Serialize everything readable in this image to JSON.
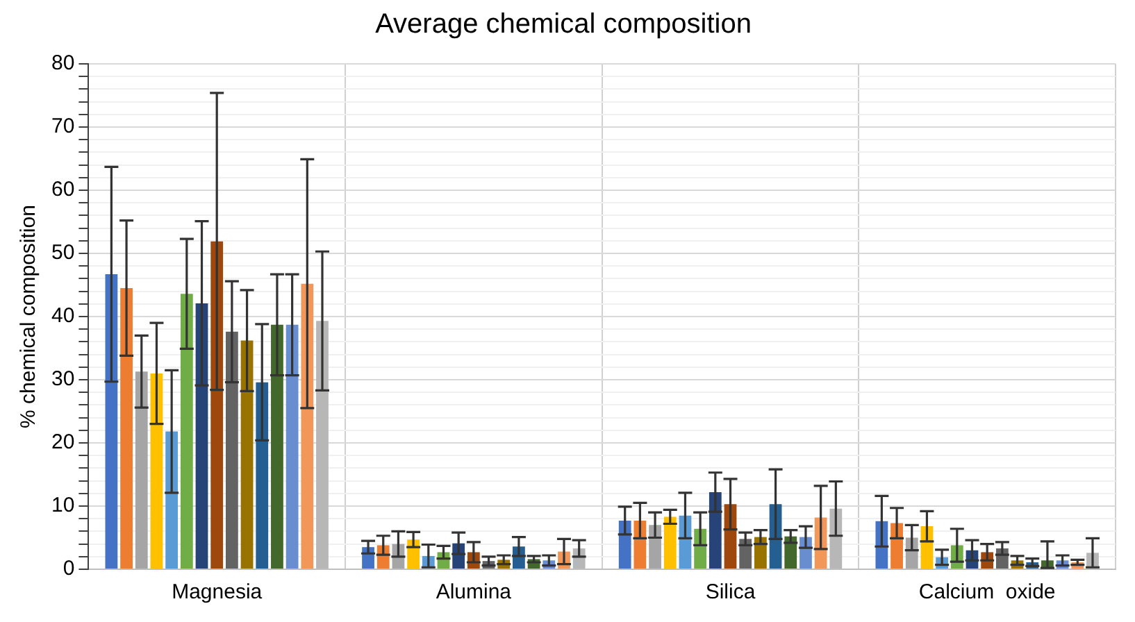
{
  "chart_data": {
    "type": "bar",
    "title": "Average chemical composition",
    "ylabel": "% chemical composition",
    "categories": [
      "Magnesia",
      "Alumina",
      "Silica",
      "Calcium  oxide"
    ],
    "ylim": [
      0,
      80
    ],
    "yticks": [
      0,
      {
        "value": 2,
        "label": null
      },
      {
        "value": 4,
        "label": null
      },
      {
        "value": 6,
        "label": null
      },
      {
        "value": 8,
        "label": null
      },
      10,
      {
        "value": 12,
        "label": null
      },
      {
        "value": 14,
        "label": null
      },
      {
        "value": 16,
        "label": null
      },
      {
        "value": 18,
        "label": null
      },
      20,
      {
        "value": 22,
        "label": null
      },
      {
        "value": 24,
        "label": null
      },
      {
        "value": 26,
        "label": null
      },
      {
        "value": 28,
        "label": null
      },
      30,
      {
        "value": 32,
        "label": null
      },
      {
        "value": 34,
        "label": null
      },
      {
        "value": 36,
        "label": null
      },
      {
        "value": 38,
        "label": null
      },
      40,
      {
        "value": 42,
        "label": null
      },
      {
        "value": 44,
        "label": null
      },
      {
        "value": 46,
        "label": null
      },
      {
        "value": 48,
        "label": null
      },
      50,
      {
        "value": 52,
        "label": null
      },
      {
        "value": 54,
        "label": null
      },
      {
        "value": 56,
        "label": null
      },
      {
        "value": 58,
        "label": null
      },
      60,
      {
        "value": 62,
        "label": null
      },
      {
        "value": 64,
        "label": null
      },
      {
        "value": 66,
        "label": null
      },
      {
        "value": 68,
        "label": null
      },
      70,
      {
        "value": 72,
        "label": null
      },
      {
        "value": 74,
        "label": null
      },
      {
        "value": 76,
        "label": null
      },
      {
        "value": 78,
        "label": null
      },
      80
    ],
    "grid": true,
    "legend": false,
    "series": [
      {
        "color": "#4472c4",
        "values": [
          46.7,
          3.5,
          7.7,
          7.6
        ],
        "errors": [
          17,
          1,
          2.2,
          4
        ]
      },
      {
        "color": "#ed7d31",
        "values": [
          44.5,
          3.8,
          7.7,
          7.3
        ],
        "errors": [
          10.7,
          1.5,
          2.8,
          2.4
        ]
      },
      {
        "color": "#a5a5a5",
        "values": [
          31.3,
          4,
          7,
          5
        ],
        "errors": [
          5.7,
          2,
          2,
          2
        ]
      },
      {
        "color": "#ffc000",
        "values": [
          31,
          4.7,
          8.3,
          6.8
        ],
        "errors": [
          8,
          1.2,
          1.1,
          2.4
        ]
      },
      {
        "color": "#5b9bd5",
        "values": [
          21.8,
          2.1,
          8.5,
          1.9
        ],
        "errors": [
          9.7,
          1.8,
          3.6,
          1.2
        ]
      },
      {
        "color": "#70ad47",
        "values": [
          43.6,
          2.7,
          6.4,
          3.8
        ],
        "errors": [
          8.7,
          1,
          2.6,
          2.6
        ]
      },
      {
        "color": "#264478",
        "values": [
          42.1,
          4.1,
          12.2,
          3
        ],
        "errors": [
          13,
          1.7,
          3.1,
          1.6
        ]
      },
      {
        "color": "#9e480e",
        "values": [
          51.9,
          2.7,
          10.3,
          2.7
        ],
        "errors": [
          23.5,
          1.6,
          4,
          1.3
        ]
      },
      {
        "color": "#636363",
        "values": [
          37.6,
          1.3,
          4.8,
          3.3
        ],
        "errors": [
          8,
          0.7,
          1,
          1
        ]
      },
      {
        "color": "#997300",
        "values": [
          36.2,
          1.5,
          5.1,
          1.4
        ],
        "errors": [
          8,
          0.7,
          1.1,
          0.7
        ]
      },
      {
        "color": "#255e91",
        "values": [
          29.6,
          3.6,
          10.3,
          1.1
        ],
        "errors": [
          9.2,
          1.5,
          5.5,
          0.6
        ]
      },
      {
        "color": "#43682b",
        "values": [
          38.7,
          1.6,
          5.2,
          1.4
        ],
        "errors": [
          8,
          0.5,
          1,
          [
            0.2,
            4.4
          ]
        ]
      },
      {
        "color": "#698ed0",
        "values": [
          38.7,
          1.4,
          5.1,
          1.4
        ],
        "errors": [
          8,
          0.8,
          1.7,
          0.8
        ]
      },
      {
        "color": "#f1975a",
        "values": [
          45.2,
          2.8,
          8.2,
          1.1
        ],
        "errors": [
          19.7,
          2,
          5,
          0.4
        ]
      },
      {
        "color": "#b7b7b7",
        "values": [
          39.3,
          3.3,
          9.6,
          2.6
        ],
        "errors": [
          11,
          1.3,
          4.3,
          2.3
        ]
      }
    ]
  }
}
